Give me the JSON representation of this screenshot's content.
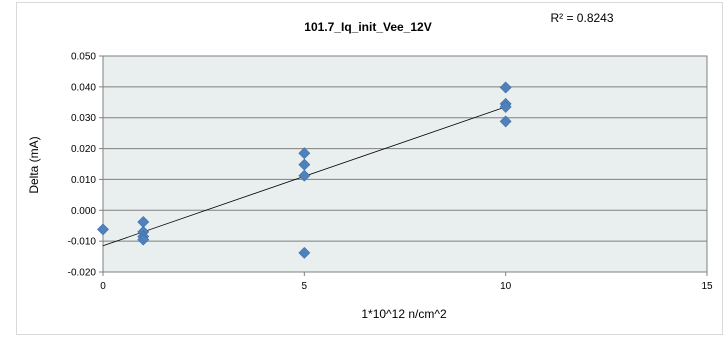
{
  "chart_data": {
    "type": "scatter",
    "title": "101.7_Iq_init_Vee_12V",
    "xlabel": "1*10^12 n/cm^2",
    "ylabel": "Delta (mA)",
    "xlim": [
      0,
      15
    ],
    "ylim": [
      -0.02,
      0.05
    ],
    "x_ticks": [
      "0",
      "5",
      "10",
      "15"
    ],
    "y_ticks": [
      "-0.020",
      "-0.010",
      "0.000",
      "0.010",
      "0.020",
      "0.030",
      "0.040",
      "0.050"
    ],
    "grid": true,
    "series": [
      {
        "marker": "diamond",
        "color": "#4f81bd",
        "points": [
          {
            "x": 0,
            "y": -0.0062
          },
          {
            "x": 1,
            "y": -0.0038
          },
          {
            "x": 1,
            "y": -0.007
          },
          {
            "x": 1,
            "y": -0.0085
          },
          {
            "x": 1,
            "y": -0.0095
          },
          {
            "x": 5,
            "y": 0.0185
          },
          {
            "x": 5,
            "y": 0.0148
          },
          {
            "x": 5,
            "y": 0.0112
          },
          {
            "x": 5,
            "y": -0.0138
          },
          {
            "x": 10,
            "y": 0.0398
          },
          {
            "x": 10,
            "y": 0.0345
          },
          {
            "x": 10,
            "y": 0.0335
          },
          {
            "x": 10,
            "y": 0.0288
          }
        ]
      }
    ],
    "trendline": {
      "type": "linear",
      "from": {
        "x": 0,
        "y": -0.0115
      },
      "to": {
        "x": 10,
        "y": 0.0335
      },
      "color": "#000000",
      "r_squared_label": "R² = 0.8243"
    },
    "plot_background": "#e9eeee",
    "grid_color": "#808080"
  }
}
